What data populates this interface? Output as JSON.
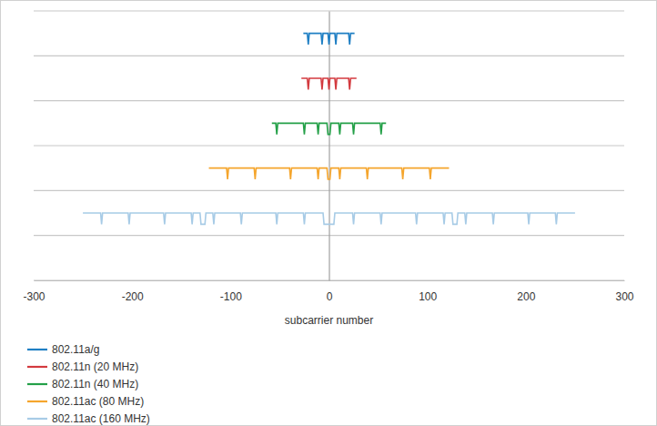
{
  "chart_data": {
    "type": "line",
    "xlabel": "subcarrier number",
    "xlim": [
      -300,
      300
    ],
    "xticks": [
      -300,
      -200,
      -100,
      0,
      100,
      200,
      300
    ],
    "ylim": [
      0,
      6
    ],
    "yticks": [
      0,
      1,
      2,
      3,
      4,
      5,
      6
    ],
    "grid": true,
    "tick_labels": "x",
    "legend": "bottom",
    "series": [
      {
        "name": "802.11a/g",
        "color": "#1f7fc4",
        "x": [
          -26,
          -22,
          -21,
          -20,
          -8,
          -7,
          -6,
          -1,
          0,
          1,
          6,
          7,
          8,
          20,
          21,
          22,
          26
        ],
        "values": [
          5.5,
          5.5,
          5.25,
          5.5,
          5.5,
          5.25,
          5.5,
          5.5,
          5.25,
          5.5,
          5.5,
          5.25,
          5.5,
          5.5,
          5.25,
          5.5,
          5.5
        ]
      },
      {
        "name": "802.11n (20 MHz)",
        "color": "#d33a3f",
        "x": [
          -28,
          -22,
          -21,
          -20,
          -8,
          -7,
          -6,
          -1,
          0,
          1,
          6,
          7,
          8,
          20,
          21,
          22,
          28
        ],
        "values": [
          4.5,
          4.5,
          4.25,
          4.5,
          4.5,
          4.25,
          4.5,
          4.5,
          4.25,
          4.5,
          4.5,
          4.25,
          4.5,
          4.5,
          4.25,
          4.5,
          4.5
        ]
      },
      {
        "name": "802.11n (40 MHz)",
        "color": "#24a048",
        "x": [
          -58,
          -54,
          -53,
          -52,
          -26,
          -25,
          -24,
          -12,
          -11,
          -10,
          -2,
          -1,
          1,
          2,
          10,
          11,
          12,
          24,
          25,
          26,
          52,
          53,
          54,
          58
        ],
        "values": [
          3.5,
          3.5,
          3.25,
          3.5,
          3.5,
          3.25,
          3.5,
          3.5,
          3.25,
          3.5,
          3.5,
          3.25,
          3.25,
          3.5,
          3.5,
          3.25,
          3.5,
          3.5,
          3.25,
          3.5,
          3.5,
          3.25,
          3.5,
          3.5
        ]
      },
      {
        "name": "802.11ac (80 MHz)",
        "color": "#f5a52c",
        "x": [
          -122,
          -104,
          -103,
          -102,
          -76,
          -75,
          -74,
          -40,
          -39,
          -38,
          -12,
          -11,
          -10,
          -2,
          -1,
          1,
          2,
          10,
          11,
          12,
          38,
          39,
          40,
          74,
          75,
          76,
          102,
          103,
          104,
          122
        ],
        "values": [
          2.5,
          2.5,
          2.25,
          2.5,
          2.5,
          2.25,
          2.5,
          2.5,
          2.25,
          2.5,
          2.5,
          2.25,
          2.5,
          2.5,
          2.25,
          2.25,
          2.5,
          2.5,
          2.25,
          2.5,
          2.5,
          2.25,
          2.5,
          2.5,
          2.25,
          2.5,
          2.5,
          2.25,
          2.5,
          2.5
        ]
      },
      {
        "name": "802.11ac (160 MHz)",
        "color": "#a7cbe6",
        "x": [
          -250,
          -232,
          -231,
          -230,
          -204,
          -203,
          -202,
          -168,
          -167,
          -166,
          -140,
          -139,
          -138,
          -131,
          -130,
          -126,
          -125,
          -118,
          -117,
          -116,
          -90,
          -89,
          -88,
          -54,
          -53,
          -52,
          -26,
          -25,
          -24,
          -6,
          -5,
          5,
          6,
          24,
          25,
          26,
          52,
          53,
          54,
          88,
          89,
          90,
          116,
          117,
          118,
          125,
          126,
          130,
          131,
          138,
          139,
          140,
          166,
          167,
          168,
          202,
          203,
          204,
          230,
          231,
          232,
          250
        ],
        "values": [
          1.5,
          1.5,
          1.25,
          1.5,
          1.5,
          1.25,
          1.5,
          1.5,
          1.25,
          1.5,
          1.5,
          1.25,
          1.5,
          1.5,
          1.25,
          1.25,
          1.5,
          1.5,
          1.25,
          1.5,
          1.5,
          1.25,
          1.5,
          1.5,
          1.25,
          1.5,
          1.5,
          1.25,
          1.5,
          1.5,
          1.25,
          1.25,
          1.5,
          1.5,
          1.25,
          1.5,
          1.5,
          1.25,
          1.5,
          1.5,
          1.25,
          1.5,
          1.5,
          1.25,
          1.5,
          1.5,
          1.25,
          1.25,
          1.5,
          1.5,
          1.25,
          1.5,
          1.5,
          1.25,
          1.5,
          1.5,
          1.25,
          1.5,
          1.5,
          1.25,
          1.5,
          1.5
        ]
      }
    ]
  }
}
